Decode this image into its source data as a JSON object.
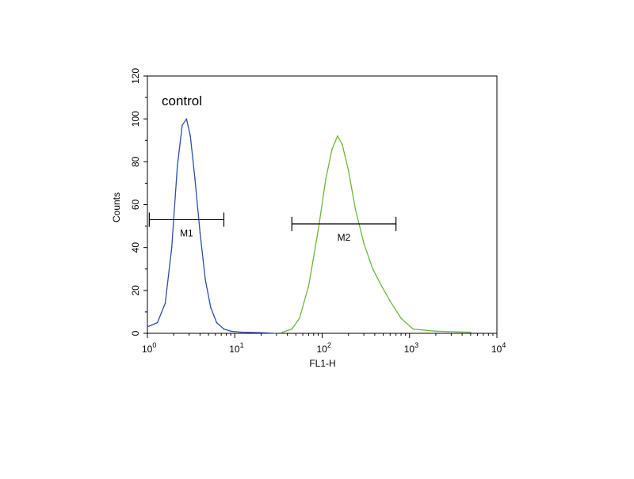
{
  "chart_data": {
    "type": "line",
    "xlabel": "FL1-H",
    "ylabel": "Counts",
    "x_scale": "log",
    "xlim": [
      1,
      10000
    ],
    "ylim": [
      0,
      120
    ],
    "y_ticks": [
      "0",
      "20",
      "40",
      "60",
      "80",
      "100",
      "120"
    ],
    "x_ticks": [
      {
        "base": "10",
        "exp": "0"
      },
      {
        "base": "10",
        "exp": "1"
      },
      {
        "base": "10",
        "exp": "2"
      },
      {
        "base": "10",
        "exp": "3"
      },
      {
        "base": "10",
        "exp": "4"
      }
    ],
    "annotation": "control",
    "grid": false,
    "series": [
      {
        "color": "#2b4fa3",
        "x": [
          1.0,
          1.3,
          1.6,
          1.9,
          2.2,
          2.5,
          2.8,
          3.1,
          3.5,
          4.0,
          4.6,
          5.3,
          6.2,
          7.5,
          9.0,
          12,
          20,
          30
        ],
        "y": [
          3,
          5,
          14,
          40,
          78,
          97,
          100,
          92,
          72,
          47,
          25,
          12,
          5,
          2,
          1,
          0.5,
          0.3,
          0
        ]
      },
      {
        "color": "#6ab83f",
        "x": [
          35,
          45,
          55,
          70,
          90,
          110,
          130,
          150,
          170,
          200,
          240,
          300,
          380,
          480,
          600,
          800,
          1100,
          2000,
          5000
        ],
        "y": [
          0.5,
          2,
          7,
          22,
          48,
          72,
          86,
          92,
          88,
          76,
          58,
          42,
          30,
          22,
          15,
          7,
          2,
          1,
          0.5
        ]
      }
    ],
    "markers": [
      {
        "label": "M1",
        "x_start": 1.05,
        "x_end": 7.5,
        "y": 53
      },
      {
        "label": "M2",
        "x_start": 45,
        "x_end": 700,
        "y": 51
      }
    ]
  }
}
